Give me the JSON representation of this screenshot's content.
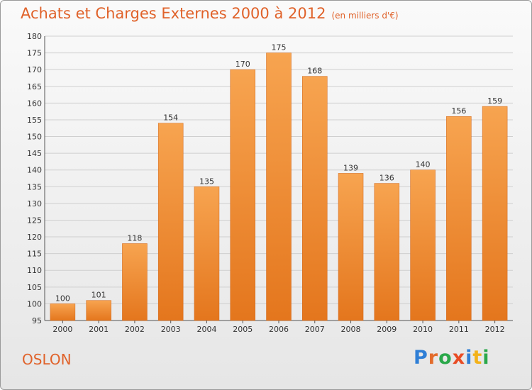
{
  "title": "Achats et Charges Externes 2000 à 2012",
  "subtitle": "(en milliers d'€)",
  "commune": "OSLON",
  "logo": {
    "letters": [
      "P",
      "r",
      "o",
      "x",
      "i",
      "t",
      "i"
    ],
    "colors": [
      "#2f7fd6",
      "#e36c2c",
      "#2aa84a",
      "#e84c24",
      "#2f7fd6",
      "#f3b21a",
      "#2aa84a"
    ]
  },
  "colors": {
    "bar_top": "#f7a450",
    "bar_bottom": "#e4761d",
    "title": "#e0622a"
  },
  "chart_data": {
    "type": "bar",
    "title": "Achats et Charges Externes 2000 à 2012",
    "categories": [
      "2000",
      "2001",
      "2002",
      "2003",
      "2004",
      "2005",
      "2006",
      "2007",
      "2008",
      "2009",
      "2010",
      "2011",
      "2012"
    ],
    "values": [
      100,
      101,
      118,
      154,
      135,
      170,
      175,
      168,
      139,
      136,
      140,
      156,
      159
    ],
    "ylim": [
      95,
      180
    ],
    "yticks": [
      95,
      100,
      105,
      110,
      115,
      120,
      125,
      130,
      135,
      140,
      145,
      150,
      155,
      160,
      165,
      170,
      175,
      180
    ],
    "grid": true,
    "xlabel": "",
    "ylabel": ""
  }
}
